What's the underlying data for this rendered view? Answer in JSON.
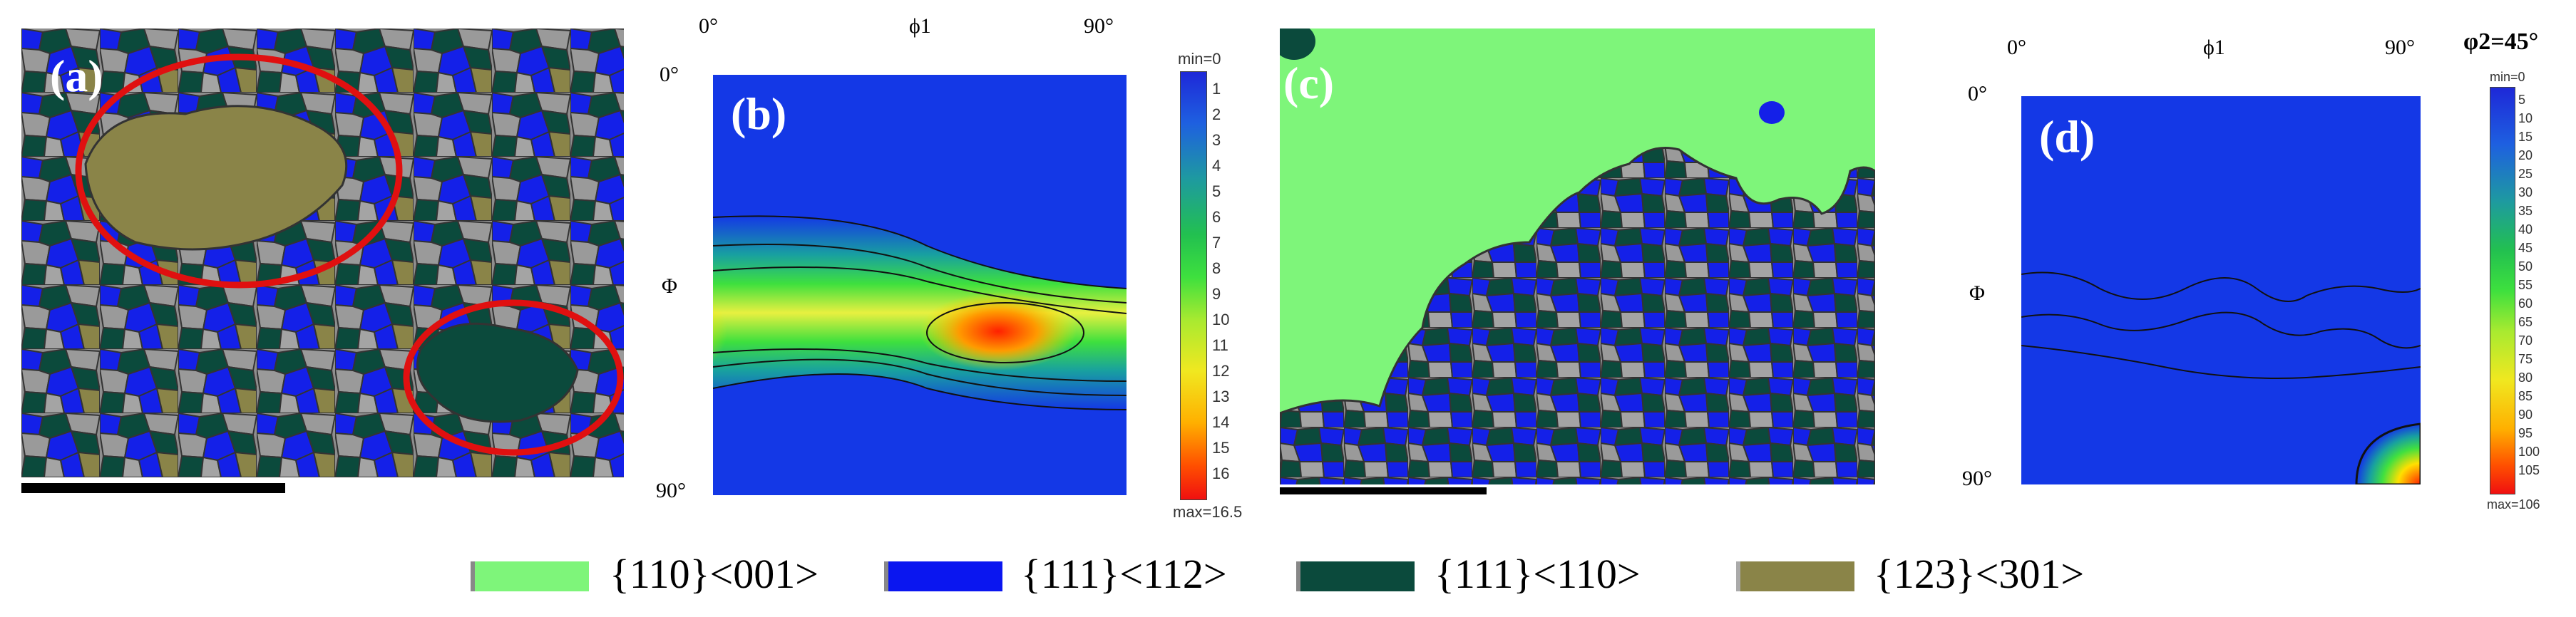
{
  "panels": {
    "a": {
      "label": "(a)"
    },
    "b": {
      "label": "(b)",
      "x_min": "0°",
      "x_label": "ϕ1",
      "x_max": "90°",
      "y_min": "0°",
      "y_label": "Φ",
      "y_max": "90°",
      "colorbar": {
        "top": "min=0",
        "ticks": [
          "1",
          "2",
          "3",
          "4",
          "5",
          "6",
          "7",
          "8",
          "9",
          "10",
          "11",
          "12",
          "13",
          "14",
          "15",
          "16"
        ],
        "bottom": "max=16.5"
      }
    },
    "c": {
      "label": "(c)"
    },
    "d": {
      "label": "(d)",
      "x_min": "0°",
      "x_label": "ϕ1",
      "x_max": "90°",
      "y_min": "0°",
      "y_label": "Φ",
      "y_max": "90°",
      "section": "φ2=45°",
      "colorbar": {
        "top": "min=0",
        "ticks": [
          "5",
          "10",
          "15",
          "20",
          "25",
          "30",
          "35",
          "40",
          "45",
          "50",
          "55",
          "60",
          "65",
          "70",
          "75",
          "80",
          "85",
          "90",
          "95",
          "100",
          "105"
        ],
        "bottom": "max=106"
      }
    }
  },
  "legend": [
    {
      "label": "{110}<001>",
      "color": "#7ef57a"
    },
    {
      "label": "{111}<112>",
      "color": "#0a16f0"
    },
    {
      "label": "{111}<110>",
      "color": "#0b4a3c"
    },
    {
      "label": "{123}<301>",
      "color": "#8a8448"
    }
  ],
  "colors": {
    "grain_grey": "#8e8e8e",
    "highlight_circle": "#e01010",
    "odf_background": "#1438e6"
  }
}
